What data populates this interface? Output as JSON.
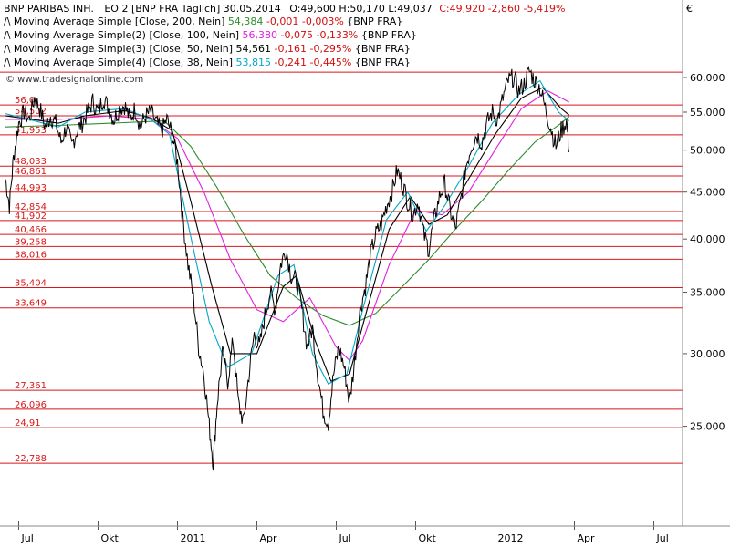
{
  "chart_data": {
    "type": "line",
    "header": {
      "instrument": "BNP PARIBAS INH.",
      "info": "EO 2 [BNP FRA  Täglich] 30.05.2014",
      "ohlc": "O:49,600 H:50,170 L:49,037",
      "close": "C:49,920 -2,860 -5,419%"
    },
    "currency_label": "€",
    "watermark": "© www.tradesignalonline.com",
    "indicators": [
      {
        "label": "Moving Average Simple [Close, 200, Nein]",
        "value": "54,384",
        "change": "-0,001 -0,003%",
        "source": "{BNP FRA}",
        "color": "#2e8b2e"
      },
      {
        "label": "Moving Average Simple(2) [Close, 100, Nein]",
        "value": "56,380",
        "change": "-0,075 -0,133%",
        "source": "{BNP FRA}",
        "color": "#e020e0"
      },
      {
        "label": "Moving Average Simple(3) [Close, 50, Nein]",
        "value": "54,561",
        "change": "-0,161 -0,295%",
        "source": "{BNP FRA}",
        "color": "#000000"
      },
      {
        "label": "Moving Average Simple(4) [Close, 38, Nein]",
        "value": "53,815",
        "change": "-0,241 -0,445%",
        "source": "{BNP FRA}",
        "color": "#00a8c8"
      }
    ],
    "y_scale": "log",
    "ylim": [
      20.8,
      66.5
    ],
    "yticks": [
      25000,
      30000,
      35000,
      40000,
      45000,
      50000,
      55000,
      60000
    ],
    "ytick_labels": [
      "25,000",
      "30,000",
      "35,000",
      "40,000",
      "45,000",
      "50,000",
      "55,000",
      "60,000"
    ],
    "xlim": [
      0,
      23.5
    ],
    "xticks": [
      {
        "m": 0.5,
        "label": "Jul"
      },
      {
        "m": 3.5,
        "label": "Okt"
      },
      {
        "m": 6.5,
        "label": "2011"
      },
      {
        "m": 9.5,
        "label": "Apr"
      },
      {
        "m": 12.5,
        "label": "Jul"
      },
      {
        "m": 15.5,
        "label": "Okt"
      },
      {
        "m": 18.5,
        "label": "2012"
      },
      {
        "m": 21.5,
        "label": "Apr"
      },
      {
        "m": 24.5,
        "label": "Jul"
      }
    ],
    "hlines": [
      {
        "value": 60.8,
        "label": ""
      },
      {
        "value": 56.0,
        "label": "56,0"
      },
      {
        "value": 54.502,
        "label": "54,502"
      },
      {
        "value": 51.953,
        "label": "51,953"
      },
      {
        "value": 48.033,
        "label": "48,033"
      },
      {
        "value": 46.861,
        "label": "46,861"
      },
      {
        "value": 44.993,
        "label": "44,993"
      },
      {
        "value": 42.854,
        "label": "42,854"
      },
      {
        "value": 41.902,
        "label": "41,902"
      },
      {
        "value": 40.466,
        "label": "40,466"
      },
      {
        "value": 39.258,
        "label": "39,258"
      },
      {
        "value": 38.016,
        "label": "38,016"
      },
      {
        "value": 35.404,
        "label": "35,404"
      },
      {
        "value": 33.649,
        "label": "33,649"
      },
      {
        "value": 27.361,
        "label": "27,361"
      },
      {
        "value": 26.096,
        "label": "26,096"
      },
      {
        "value": 24.91,
        "label": "24,91"
      },
      {
        "value": 22.788,
        "label": "22,788"
      }
    ],
    "price_series": [
      [
        0.0,
        46.5
      ],
      [
        0.15,
        43.5
      ],
      [
        0.3,
        49.0
      ],
      [
        0.5,
        53.5
      ],
      [
        0.7,
        55.0
      ],
      [
        0.9,
        54.0
      ],
      [
        1.1,
        57.0
      ],
      [
        1.3,
        55.5
      ],
      [
        1.5,
        53.0
      ],
      [
        1.7,
        54.5
      ],
      [
        1.9,
        53.5
      ],
      [
        2.1,
        51.0
      ],
      [
        2.3,
        53.0
      ],
      [
        2.5,
        50.5
      ],
      [
        2.7,
        52.5
      ],
      [
        2.9,
        53.5
      ],
      [
        3.1,
        55.0
      ],
      [
        3.3,
        56.5
      ],
      [
        3.5,
        55.0
      ],
      [
        3.7,
        57.0
      ],
      [
        3.9,
        55.5
      ],
      [
        4.1,
        54.0
      ],
      [
        4.3,
        55.5
      ],
      [
        4.5,
        56.0
      ],
      [
        4.7,
        54.0
      ],
      [
        4.9,
        55.5
      ],
      [
        5.1,
        53.0
      ],
      [
        5.3,
        54.5
      ],
      [
        5.5,
        55.0
      ],
      [
        5.7,
        53.5
      ],
      [
        5.9,
        52.5
      ],
      [
        6.1,
        54.0
      ],
      [
        6.3,
        52.0
      ],
      [
        6.5,
        48.5
      ],
      [
        6.7,
        42.0
      ],
      [
        6.9,
        37.5
      ],
      [
        7.1,
        34.5
      ],
      [
        7.3,
        30.5
      ],
      [
        7.5,
        28.5
      ],
      [
        7.7,
        25.0
      ],
      [
        7.85,
        22.8
      ],
      [
        8.0,
        26.5
      ],
      [
        8.2,
        30.0
      ],
      [
        8.4,
        28.0
      ],
      [
        8.6,
        31.0
      ],
      [
        8.8,
        26.5
      ],
      [
        9.0,
        25.2
      ],
      [
        9.2,
        28.5
      ],
      [
        9.4,
        31.5
      ],
      [
        9.6,
        30.5
      ],
      [
        9.8,
        33.0
      ],
      [
        10.0,
        35.0
      ],
      [
        10.2,
        33.5
      ],
      [
        10.4,
        37.5
      ],
      [
        10.6,
        39.0
      ],
      [
        10.8,
        36.5
      ],
      [
        11.0,
        36.0
      ],
      [
        11.2,
        33.5
      ],
      [
        11.4,
        30.5
      ],
      [
        11.6,
        32.0
      ],
      [
        11.8,
        28.5
      ],
      [
        12.0,
        26.0
      ],
      [
        12.2,
        25.2
      ],
      [
        12.4,
        28.5
      ],
      [
        12.6,
        30.5
      ],
      [
        12.8,
        29.0
      ],
      [
        13.0,
        26.5
      ],
      [
        13.2,
        29.5
      ],
      [
        13.4,
        33.5
      ],
      [
        13.6,
        35.5
      ],
      [
        13.8,
        38.5
      ],
      [
        14.0,
        40.5
      ],
      [
        14.2,
        41.5
      ],
      [
        14.4,
        43.5
      ],
      [
        14.6,
        45.0
      ],
      [
        14.8,
        47.5
      ],
      [
        15.0,
        46.0
      ],
      [
        15.2,
        44.0
      ],
      [
        15.4,
        42.5
      ],
      [
        15.6,
        44.0
      ],
      [
        15.8,
        40.5
      ],
      [
        16.0,
        39.0
      ],
      [
        16.2,
        42.0
      ],
      [
        16.4,
        44.5
      ],
      [
        16.6,
        46.0
      ],
      [
        16.8,
        43.0
      ],
      [
        17.0,
        41.0
      ],
      [
        17.2,
        44.0
      ],
      [
        17.4,
        48.0
      ],
      [
        17.6,
        50.5
      ],
      [
        17.8,
        52.0
      ],
      [
        18.0,
        51.0
      ],
      [
        18.2,
        53.5
      ],
      [
        18.4,
        55.0
      ],
      [
        18.6,
        54.0
      ],
      [
        18.8,
        57.0
      ],
      [
        19.0,
        59.5
      ],
      [
        19.2,
        60.0
      ],
      [
        19.4,
        58.0
      ],
      [
        19.6,
        59.0
      ],
      [
        19.8,
        61.0
      ],
      [
        20.0,
        59.5
      ],
      [
        20.2,
        58.5
      ],
      [
        20.4,
        55.5
      ],
      [
        20.6,
        53.0
      ],
      [
        20.8,
        50.5
      ],
      [
        21.0,
        52.5
      ],
      [
        21.2,
        53.8
      ],
      [
        21.3,
        49.9
      ]
    ],
    "ma_series": [
      {
        "name": "MA 200",
        "color": "#2e8b2e",
        "points": [
          [
            0.0,
            53.0
          ],
          [
            2,
            53.2
          ],
          [
            4,
            53.5
          ],
          [
            6,
            53.8
          ],
          [
            7,
            50.5
          ],
          [
            8,
            45.5
          ],
          [
            9,
            40.5
          ],
          [
            10,
            36.5
          ],
          [
            11,
            34.5
          ],
          [
            12,
            33.0
          ],
          [
            13,
            32.2
          ],
          [
            14,
            33.2
          ],
          [
            15,
            35.5
          ],
          [
            16,
            38.0
          ],
          [
            17,
            41.0
          ],
          [
            18,
            44.0
          ],
          [
            19,
            47.5
          ],
          [
            20,
            51.0
          ],
          [
            21,
            53.5
          ],
          [
            21.3,
            54.4
          ]
        ]
      },
      {
        "name": "MA 100",
        "color": "#e020e0",
        "points": [
          [
            0.0,
            54.0
          ],
          [
            2,
            54.0
          ],
          [
            4,
            54.5
          ],
          [
            5.5,
            54.0
          ],
          [
            6.5,
            51.5
          ],
          [
            7.5,
            45.0
          ],
          [
            8.5,
            38.0
          ],
          [
            9.5,
            33.5
          ],
          [
            10.5,
            32.5
          ],
          [
            11.5,
            34.5
          ],
          [
            12.5,
            30.5
          ],
          [
            13,
            29.5
          ],
          [
            13.5,
            31.0
          ],
          [
            14.5,
            37.5
          ],
          [
            15.5,
            43.0
          ],
          [
            16.5,
            42.5
          ],
          [
            17.5,
            45.0
          ],
          [
            18.5,
            50.0
          ],
          [
            19.5,
            55.5
          ],
          [
            20.5,
            58.0
          ],
          [
            21.3,
            56.4
          ]
        ]
      },
      {
        "name": "MA 50",
        "color": "#000000",
        "points": [
          [
            0.0,
            54.5
          ],
          [
            2,
            53.5
          ],
          [
            3,
            54.5
          ],
          [
            4.5,
            55.2
          ],
          [
            5.5,
            54.2
          ],
          [
            6.3,
            52.5
          ],
          [
            7.0,
            44.0
          ],
          [
            7.8,
            35.5
          ],
          [
            8.5,
            30.0
          ],
          [
            9.5,
            30.0
          ],
          [
            10.5,
            35.5
          ],
          [
            11.0,
            36.5
          ],
          [
            11.7,
            31.0
          ],
          [
            12.3,
            28.0
          ],
          [
            13.0,
            28.5
          ],
          [
            13.6,
            33.0
          ],
          [
            14.5,
            41.0
          ],
          [
            15.3,
            44.5
          ],
          [
            16.0,
            41.5
          ],
          [
            16.7,
            42.5
          ],
          [
            17.5,
            46.5
          ],
          [
            18.5,
            52.0
          ],
          [
            19.5,
            57.0
          ],
          [
            20.3,
            58.5
          ],
          [
            21.0,
            55.5
          ],
          [
            21.3,
            54.6
          ]
        ]
      },
      {
        "name": "MA 38",
        "color": "#00a8c8",
        "points": [
          [
            0.0,
            54.8
          ],
          [
            2,
            53.0
          ],
          [
            3,
            55.0
          ],
          [
            4.5,
            55.5
          ],
          [
            5.5,
            54.0
          ],
          [
            6.2,
            52.0
          ],
          [
            6.9,
            41.5
          ],
          [
            7.7,
            32.5
          ],
          [
            8.4,
            29.0
          ],
          [
            9.3,
            30.0
          ],
          [
            10.3,
            36.5
          ],
          [
            10.9,
            37.5
          ],
          [
            11.6,
            30.0
          ],
          [
            12.2,
            27.8
          ],
          [
            12.9,
            28.5
          ],
          [
            13.5,
            33.5
          ],
          [
            14.4,
            42.0
          ],
          [
            15.2,
            45.0
          ],
          [
            15.9,
            40.8
          ],
          [
            16.6,
            43.5
          ],
          [
            17.5,
            48.0
          ],
          [
            18.4,
            53.5
          ],
          [
            19.4,
            57.5
          ],
          [
            20.2,
            59.5
          ],
          [
            20.9,
            55.0
          ],
          [
            21.3,
            53.8
          ]
        ]
      }
    ]
  }
}
